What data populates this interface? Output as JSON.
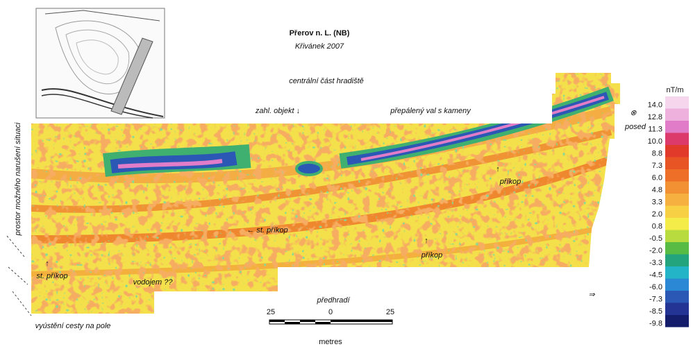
{
  "title": "Přerov n. L. (NB)",
  "subtitle": "Křivánek 2007",
  "annotations": {
    "central": "centrální část hradiště",
    "object": "zahl. objekt ↓",
    "rampart": "přepálený val s kameny",
    "symbol": "⊗",
    "posed": "posed",
    "ditch_arrow_1": "↑",
    "ditch_1": "příkop",
    "old_ditch_mid": "← st. příkop",
    "ditch_arrow_2": "↑",
    "ditch_2": "příkop",
    "old_ditch_arrow": "↑",
    "old_ditch_left": "st. příkop",
    "reservoir": "vodojem ??",
    "bailey": "předhradí",
    "road": "vyústění cesty na pole",
    "disturbed": "prostor možného narušení situaci",
    "north_arrow": "⇒"
  },
  "scale_bar": {
    "left": "25",
    "center": "0",
    "right": "25",
    "unit": "metres"
  },
  "legend": {
    "unit": "nT/m",
    "steps": [
      {
        "value": 14,
        "label": "14.0",
        "color": "#f6d6ec"
      },
      {
        "value": 12.8,
        "label": "12.8",
        "color": "#eeb0dc"
      },
      {
        "value": 11.3,
        "label": "11.3",
        "color": "#e07cc8"
      },
      {
        "value": 10,
        "label": "10.0",
        "color": "#dc3a6a"
      },
      {
        "value": 8.8,
        "label": "8.8",
        "color": "#e23a2a"
      },
      {
        "value": 7.3,
        "label": "7.3",
        "color": "#e85424"
      },
      {
        "value": 6,
        "label": "6.0",
        "color": "#ee7028"
      },
      {
        "value": 4.8,
        "label": "4.8",
        "color": "#f29034"
      },
      {
        "value": 3.3,
        "label": "3.3",
        "color": "#f6b040"
      },
      {
        "value": 2,
        "label": "2.0",
        "color": "#f8d044"
      },
      {
        "value": 0.8,
        "label": "0.8",
        "color": "#f4ec48"
      },
      {
        "value": -0.5,
        "label": "-0.5",
        "color": "#b8dc40"
      },
      {
        "value": -2,
        "label": "-2.0",
        "color": "#58bc44"
      },
      {
        "value": -3.3,
        "label": "-3.3",
        "color": "#24a47c"
      },
      {
        "value": -4.5,
        "label": "-4.5",
        "color": "#24b4c8"
      },
      {
        "value": -6,
        "label": "-6.0",
        "color": "#2a88d4"
      },
      {
        "value": -7.3,
        "label": "-7.3",
        "color": "#2a58b4"
      },
      {
        "value": -8.5,
        "label": "-8.5",
        "color": "#243494"
      },
      {
        "value": -9.8,
        "label": "-9.8",
        "color": "#141c6c"
      }
    ]
  }
}
